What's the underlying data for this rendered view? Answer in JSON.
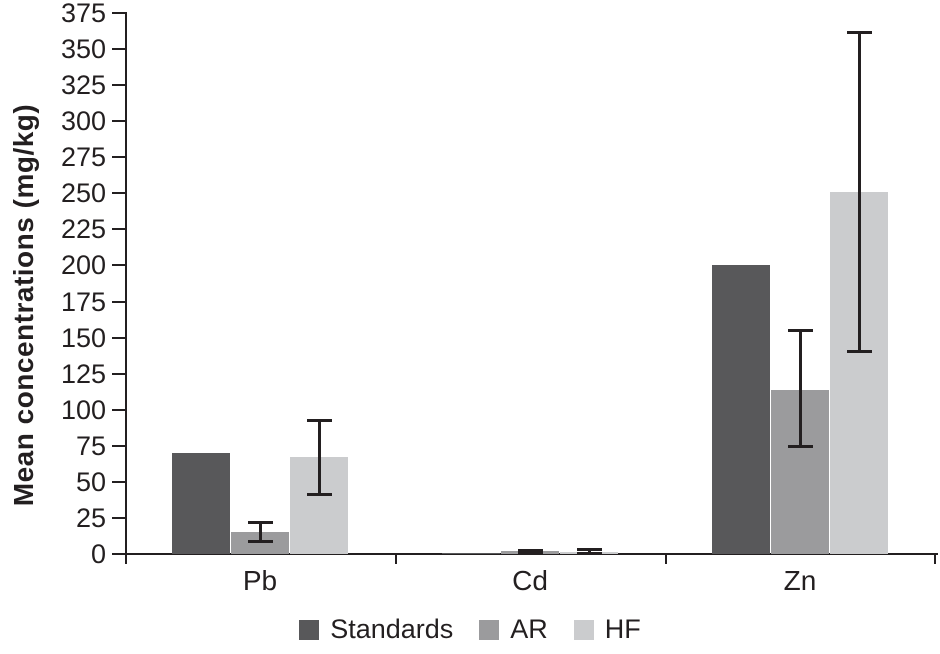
{
  "chart_data": {
    "type": "bar",
    "title": "",
    "xlabel": "",
    "ylabel": "Mean concentrations (mg/kg)",
    "ylim": [
      0,
      375
    ],
    "ytick_step": 25,
    "grid": false,
    "legend_position": "bottom",
    "axis_color": "#231f20",
    "text_color": "#231f20",
    "categories": [
      "Pb",
      "Cd",
      "Zn"
    ],
    "series": [
      {
        "name": "Standards",
        "color": "#58585a",
        "values": [
          70,
          1,
          200
        ],
        "errors": [
          null,
          null,
          null
        ]
      },
      {
        "name": "AR",
        "color": "#9b9b9d",
        "values": [
          15,
          2,
          114
        ],
        "errors": [
          [
            8,
            22
          ],
          [
            1,
            3
          ],
          [
            74,
            155
          ]
        ]
      },
      {
        "name": "HF",
        "color": "#cbccce",
        "values": [
          67,
          1.5,
          251
        ],
        "errors": [
          [
            41,
            93
          ],
          [
            0.3,
            3.3
          ],
          [
            140,
            362
          ]
        ]
      }
    ]
  }
}
